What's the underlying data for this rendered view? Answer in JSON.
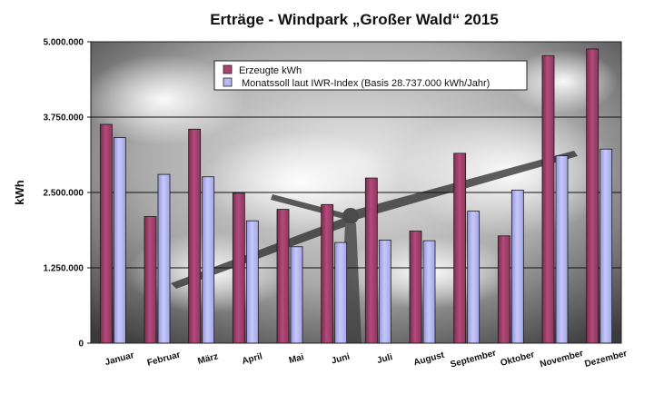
{
  "chart_data": {
    "type": "bar",
    "title": "Erträge - Windpark „Großer Wald“ 2015",
    "xlabel": "",
    "ylabel": "kWh",
    "ylim": [
      0,
      5000000
    ],
    "yticks": [
      0,
      1250000,
      2500000,
      3750000,
      5000000
    ],
    "ytick_labels": [
      "0",
      "1.250.000",
      "2.500.000",
      "3.750.000",
      "5.000.000"
    ],
    "grid": true,
    "legend_position": "top-center",
    "categories": [
      "Januar",
      "Februar",
      "März",
      "April",
      "Mai",
      "Juni",
      "Juli",
      "August",
      "September",
      "Oktober",
      "November",
      "Dezember"
    ],
    "series": [
      {
        "name": "Erzeugte kWh",
        "color": "#a8446e",
        "values": [
          3630000,
          2100000,
          3550000,
          2490000,
          2220000,
          2300000,
          2740000,
          1860000,
          3150000,
          1780000,
          4770000,
          4880000
        ]
      },
      {
        "name": "Monatssoll laut IWR-Index (Basis 28.737.000 kWh/Jahr)",
        "color": "#b7b9f4",
        "values": [
          3410000,
          2800000,
          2760000,
          2030000,
          1600000,
          1670000,
          1710000,
          1700000,
          2190000,
          2540000,
          3110000,
          3220000
        ]
      }
    ]
  }
}
